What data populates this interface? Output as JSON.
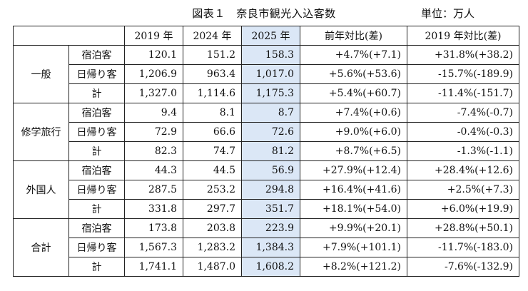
{
  "title": "図表１　奈良市観光入込客数",
  "unit": "単位：万人",
  "headers": [
    "",
    "",
    "2019 年",
    "2024 年",
    "2025 年",
    "前年対比(差)",
    "2019 年対比(差)"
  ],
  "highlight_col": 4,
  "groups": [
    {
      "category": "一般",
      "rows": [
        {
          "type": "宿泊客",
          "v2019": "120.1",
          "v2024": "151.2",
          "v2025": "158.3",
          "yoy": "+4.7%(+7.1)",
          "vs2019": "+31.8%(+38.2)"
        },
        {
          "type": "日帰り客",
          "v2019": "1,206.9",
          "v2024": "963.4",
          "v2025": "1,017.0",
          "yoy": "+5.6%(+53.6)",
          "vs2019": "-15.7%(-189.9)"
        },
        {
          "type": "計",
          "v2019": "1,327.0",
          "v2024": "1,114.6",
          "v2025": "1,175.3",
          "yoy": "+5.4%(+60.7)",
          "vs2019": "-11.4%(-151.7)"
        }
      ]
    },
    {
      "category": "修学旅行",
      "rows": [
        {
          "type": "宿泊客",
          "v2019": "9.4",
          "v2024": "8.1",
          "v2025": "8.7",
          "yoy": "+7.4%(+0.6)",
          "vs2019": "-7.4%(-0.7)"
        },
        {
          "type": "日帰り客",
          "v2019": "72.9",
          "v2024": "66.6",
          "v2025": "72.6",
          "yoy": "+9.0%(+6.0)",
          "vs2019": "-0.4%(-0.3)"
        },
        {
          "type": "計",
          "v2019": "82.3",
          "v2024": "74.7",
          "v2025": "81.2",
          "yoy": "+8.7%(+6.5)",
          "vs2019": "-1.3%(-1.1)"
        }
      ]
    },
    {
      "category": "外国人",
      "rows": [
        {
          "type": "宿泊客",
          "v2019": "44.3",
          "v2024": "44.5",
          "v2025": "56.9",
          "yoy": "+27.9%(+12.4)",
          "vs2019": "+28.4%(+12.6)"
        },
        {
          "type": "日帰り客",
          "v2019": "287.5",
          "v2024": "253.2",
          "v2025": "294.8",
          "yoy": "+16.4%(+41.6)",
          "vs2019": "+2.5%(+7.3)"
        },
        {
          "type": "計",
          "v2019": "331.8",
          "v2024": "297.7",
          "v2025": "351.7",
          "yoy": "+18.1%(+54.0)",
          "vs2019": "+6.0%(+19.9)"
        }
      ]
    },
    {
      "category": "合計",
      "rows": [
        {
          "type": "宿泊客",
          "v2019": "173.8",
          "v2024": "203.8",
          "v2025": "223.9",
          "yoy": "+9.9%(+20.1)",
          "vs2019": "+28.8%(+50.1)"
        },
        {
          "type": "日帰り客",
          "v2019": "1,567.3",
          "v2024": "1,283.2",
          "v2025": "1,384.3",
          "yoy": "+7.9%(+101.1)",
          "vs2019": "-11.7%(-183.0)"
        },
        {
          "type": "計",
          "v2019": "1,741.1",
          "v2024": "1,487.0",
          "v2025": "1,608.2",
          "yoy": "+8.2%(+121.2)",
          "vs2019": "-7.6%(-132.9)"
        }
      ]
    }
  ]
}
